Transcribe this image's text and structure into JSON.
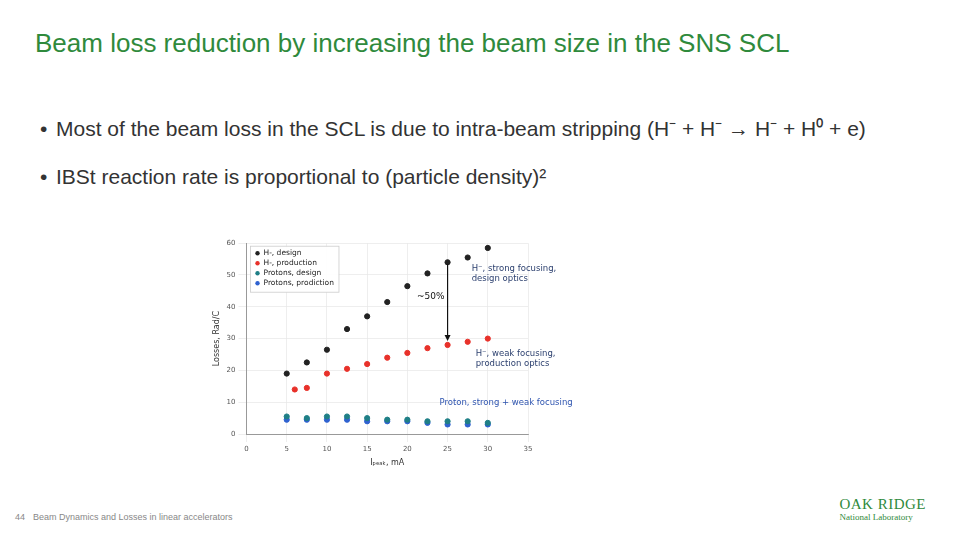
{
  "slide": {
    "title": "Beam loss reduction by increasing the beam size in the SNS SCL",
    "bullets": [
      "Most of the beam loss in the SCL is due to intra-beam stripping  (H⁻ + H⁻ → H⁻ + H⁰ + e)",
      "IBSt reaction rate is proportional to (particle density)²"
    ],
    "footer": {
      "page": "44",
      "text": "Beam Dynamics and Losses in linear accelerators"
    },
    "logo": [
      "OAK RIDGE",
      "National Laboratory"
    ]
  },
  "chart_data": {
    "type": "scatter",
    "x_label": "Iₚₑₐₖ, mA",
    "y_label": "Losses, Rad/C",
    "x": [
      5,
      6,
      7.5,
      10,
      12.5,
      15,
      17.5,
      20,
      22.5,
      25,
      27.5,
      30
    ],
    "series": [
      {
        "name": "H-, design",
        "color": "#222222",
        "values": [
          19,
          null,
          22.5,
          26.5,
          33,
          37,
          41.5,
          46.5,
          50.5,
          54,
          55.5,
          58.5
        ]
      },
      {
        "name": "H-, production",
        "color": "#e8312a",
        "values": [
          null,
          14,
          14.5,
          19,
          20.5,
          22,
          24,
          25.5,
          27,
          28,
          29,
          30
        ]
      },
      {
        "name": "Protons, design",
        "color": "#1f7f86",
        "values": [
          5.5,
          null,
          5,
          5.5,
          5.5,
          5,
          4.5,
          4.5,
          4,
          4,
          4,
          3.5
        ]
      },
      {
        "name": "Protons, prodiction",
        "color": "#2f62d0",
        "values": [
          4.5,
          null,
          4.5,
          4.5,
          4.5,
          4,
          4,
          4,
          3.5,
          3,
          3,
          3
        ]
      }
    ],
    "xlim": [
      0,
      35
    ],
    "xticks": [
      0,
      5,
      10,
      15,
      20,
      25,
      30,
      35
    ],
    "ylim": [
      0,
      60
    ],
    "yticks": [
      0,
      10,
      20,
      30,
      40,
      50,
      60
    ],
    "grid": true,
    "legend": "upper left",
    "marker": "circle",
    "annotations": [
      {
        "text": [
          "H⁻, strong focusing,",
          "design optics"
        ]
      },
      {
        "text": [
          "H⁻, weak focusing,",
          "production optics"
        ]
      },
      {
        "text": [
          "Proton, strong + weak focusing"
        ]
      },
      {
        "text": [
          "~50%"
        ]
      }
    ]
  }
}
